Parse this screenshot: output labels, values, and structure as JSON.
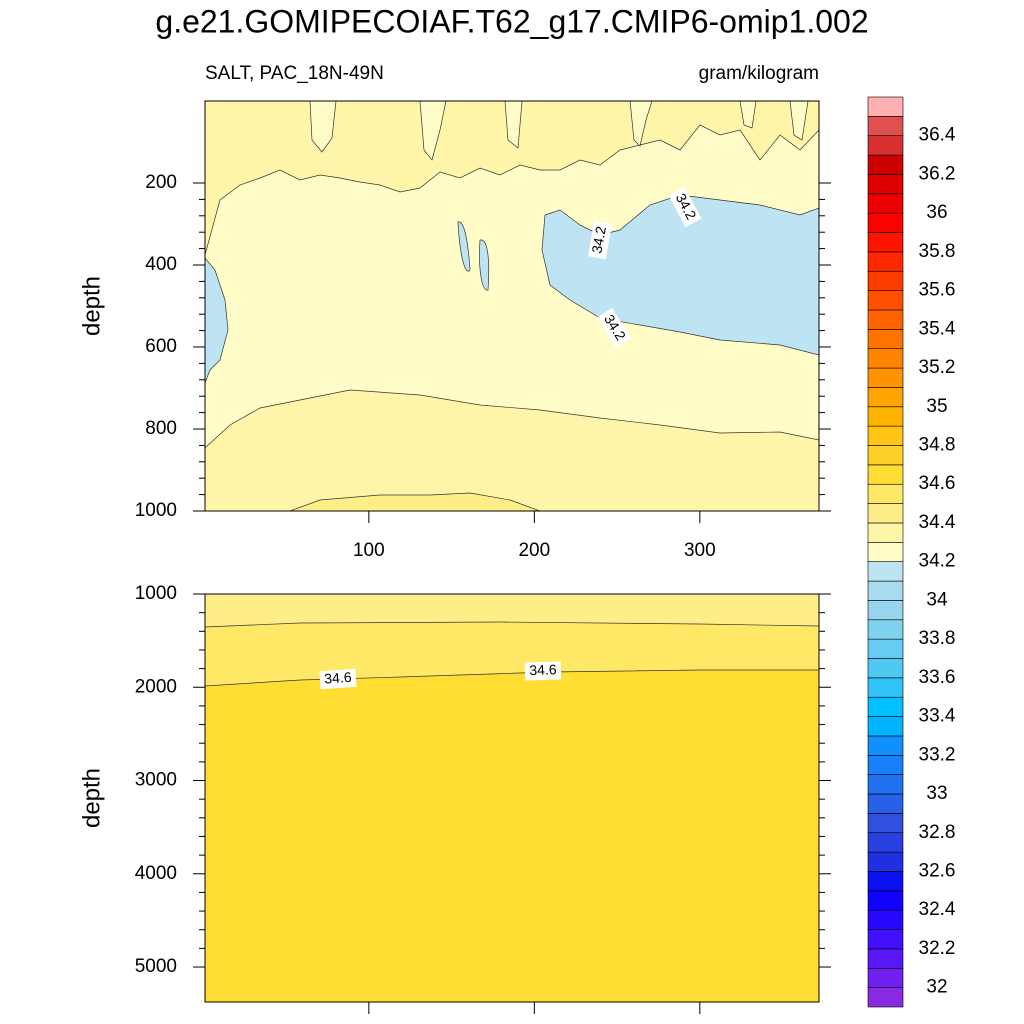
{
  "chart_data": {
    "type": "contour",
    "title": "g.e21.GOMIPECOIAF.T62_g17.CMIP6-omip1.002",
    "subtitle_left": "SALT, PAC_18N-49N",
    "subtitle_right": "gram/kilogram",
    "panels": [
      {
        "ylabel": "depth",
        "xlim": [
          1,
          372
        ],
        "xticks": [
          100,
          200,
          300
        ],
        "show_xtick_labels": true,
        "ylim": [
          0,
          1000
        ],
        "yticks": [
          200,
          400,
          600,
          800,
          1000
        ],
        "contour_labels": [
          34.2,
          34.2,
          34.2
        ]
      },
      {
        "ylabel": "depth",
        "xlim": [
          1,
          372
        ],
        "xticks": [
          100,
          200,
          300
        ],
        "show_xtick_labels": false,
        "ylim": [
          1000,
          5375
        ],
        "yticks": [
          1000,
          2000,
          3000,
          4000,
          5000
        ],
        "contour_labels": [
          34.6,
          34.6
        ]
      }
    ],
    "colorbar": {
      "levels": [
        32,
        32.1,
        32.2,
        32.3,
        32.4,
        32.5,
        32.6,
        32.7,
        32.8,
        32.9,
        33,
        33.1,
        33.2,
        33.3,
        33.4,
        33.5,
        33.6,
        33.7,
        33.8,
        33.9,
        34,
        34.1,
        34.2,
        34.3,
        34.4,
        34.5,
        34.6,
        34.7,
        34.8,
        34.9,
        35,
        35.1,
        35.2,
        35.3,
        35.4,
        35.5,
        35.6,
        35.7,
        35.8,
        35.9,
        36,
        36.1,
        36.2,
        36.3,
        36.4,
        36.5
      ],
      "ticks": [
        32,
        32.2,
        32.4,
        32.6,
        32.8,
        33,
        33.2,
        33.4,
        33.6,
        33.8,
        34,
        34.2,
        34.4,
        34.6,
        34.8,
        35,
        35.2,
        35.4,
        35.6,
        35.8,
        36,
        36.2,
        36.4
      ],
      "colors": [
        "#8a2be2",
        "#7020f0",
        "#5818f8",
        "#4010ff",
        "#2808ff",
        "#1000ff",
        "#0a10f0",
        "#2030e0",
        "#2840e0",
        "#3050e0",
        "#2860e8",
        "#2070f0",
        "#1880f8",
        "#1090fc",
        "#00b4ff",
        "#00c0ff",
        "#30c4f8",
        "#50c8f4",
        "#68ccf2",
        "#80d0f0",
        "#98d6f0",
        "#a8daf0",
        "#bee4f4",
        "#fffcc8",
        "#fff5a8",
        "#ffee88",
        "#ffe866",
        "#ffdd33",
        "#ffd128",
        "#ffc414",
        "#ffb400",
        "#ffa400",
        "#ff9400",
        "#ff8400",
        "#ff7400",
        "#ff6400",
        "#ff5000",
        "#ff3c00",
        "#ff2800",
        "#ff1400",
        "#ff0000",
        "#ee0000",
        "#dd0000",
        "#cc0000",
        "#d83030",
        "#e05050",
        "#ffb0b0"
      ]
    }
  }
}
